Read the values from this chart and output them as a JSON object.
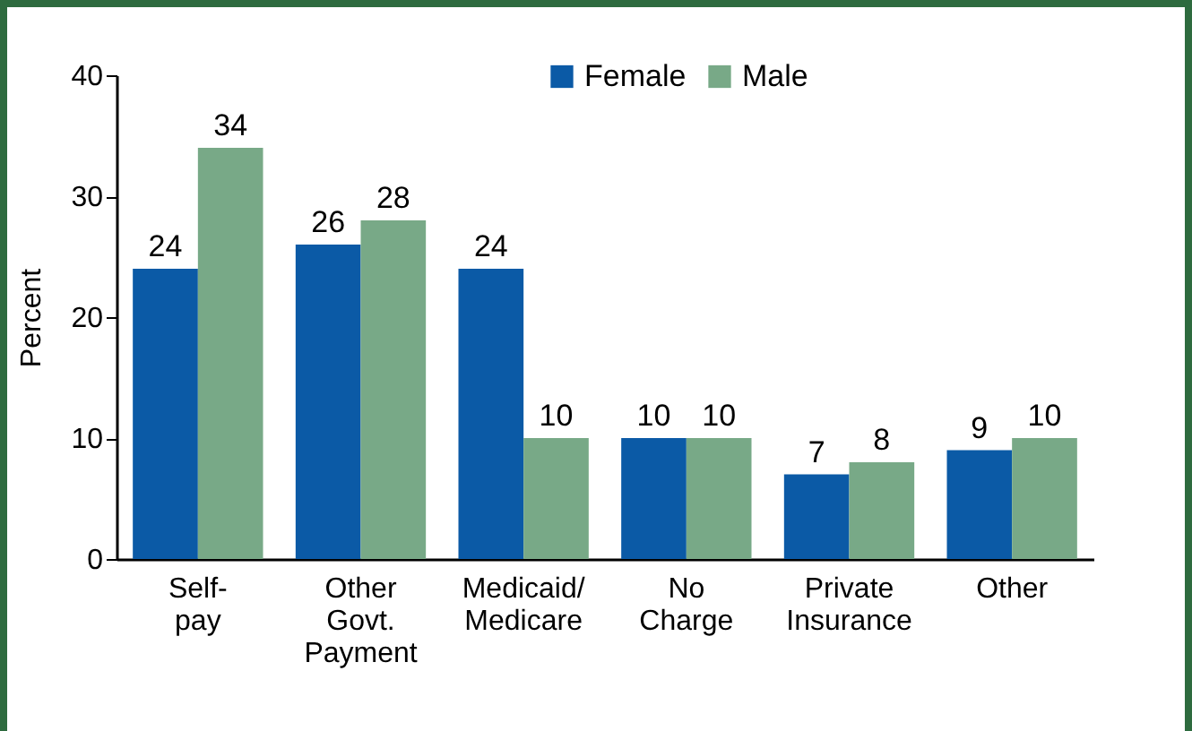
{
  "chart_data": {
    "type": "bar",
    "ylabel": "Percent",
    "categories": [
      "Self-\npay",
      "Other\nGovt.\nPayment",
      "Medicaid/\nMedicare",
      "No\nCharge",
      "Private\nInsurance",
      "Other"
    ],
    "series": [
      {
        "name": "Female",
        "color": "#0b5aa6",
        "values": [
          24,
          26,
          24,
          10,
          7,
          9
        ]
      },
      {
        "name": "Male",
        "color": "#78a987",
        "values": [
          34,
          28,
          10,
          10,
          8,
          10
        ]
      }
    ],
    "ylim": [
      0,
      40
    ],
    "yticks": [
      0,
      10,
      20,
      30,
      40
    ],
    "grid": false,
    "legend": "top",
    "data_labels": true
  }
}
